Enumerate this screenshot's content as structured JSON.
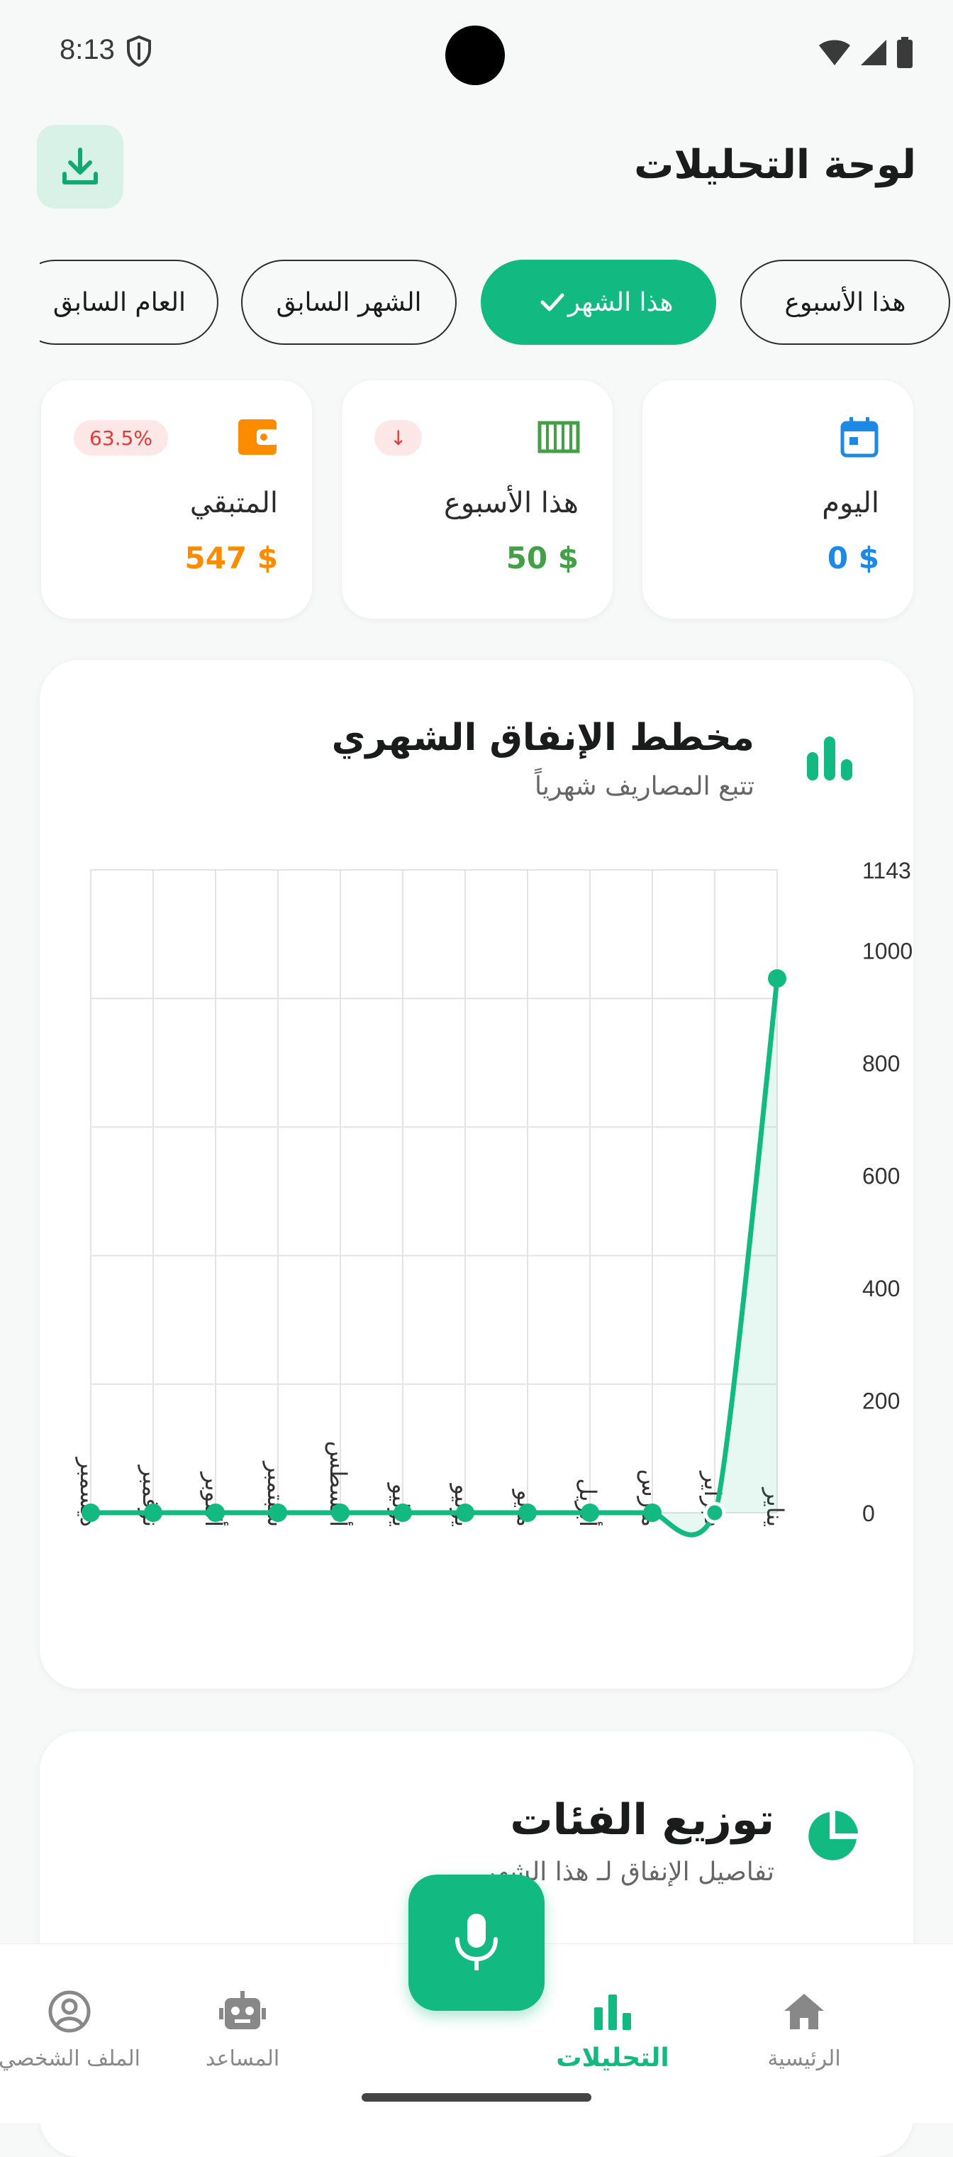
{
  "status_bar": {
    "time": "8:13"
  },
  "header": {
    "title": "لوحة التحليلات"
  },
  "filters": [
    {
      "label": "هذا الأسبوع",
      "active": false
    },
    {
      "label": "هذا الشهر",
      "active": true
    },
    {
      "label": "الشهر السابق",
      "active": false
    },
    {
      "label": "العام السابق",
      "active": false
    }
  ],
  "stats": {
    "today": {
      "label": "اليوم",
      "value": "0 $",
      "color": "#1e88e5"
    },
    "week": {
      "label": "هذا الأسبوع",
      "value": "50 $",
      "color": "#43a047",
      "badge": "↓"
    },
    "remaining": {
      "label": "المتبقي",
      "value": "547 $",
      "color": "#fb8c00",
      "badge": "63.5%"
    }
  },
  "chart_section": {
    "title": "مخطط الإنفاق الشهري",
    "subtitle": "تتبع المصاريف شهرياً"
  },
  "chart_data": {
    "type": "line",
    "categories": [
      "يناير",
      "فبراير",
      "مارس",
      "أبريل",
      "مايو",
      "يونيو",
      "يوليو",
      "أغسطس",
      "سبتمبر",
      "أكتوبر",
      "نوفمبر",
      "ديسمبر"
    ],
    "values": [
      950,
      0,
      0,
      0,
      0,
      0,
      0,
      0,
      0,
      0,
      0,
      0
    ],
    "ylim": [
      0,
      1143
    ],
    "yticks": [
      0,
      200,
      400,
      600,
      800,
      1000,
      1143
    ],
    "color": "#12b981",
    "grid": true
  },
  "categories_section": {
    "title": "توزيع الفئات",
    "subtitle": "تفاصيل الإنفاق لـ هذا الشهر"
  },
  "nav": {
    "home": "الرئيسية",
    "analytics": "التحليلات",
    "assistant": "المساعد",
    "profile": "الملف الشخصي"
  }
}
